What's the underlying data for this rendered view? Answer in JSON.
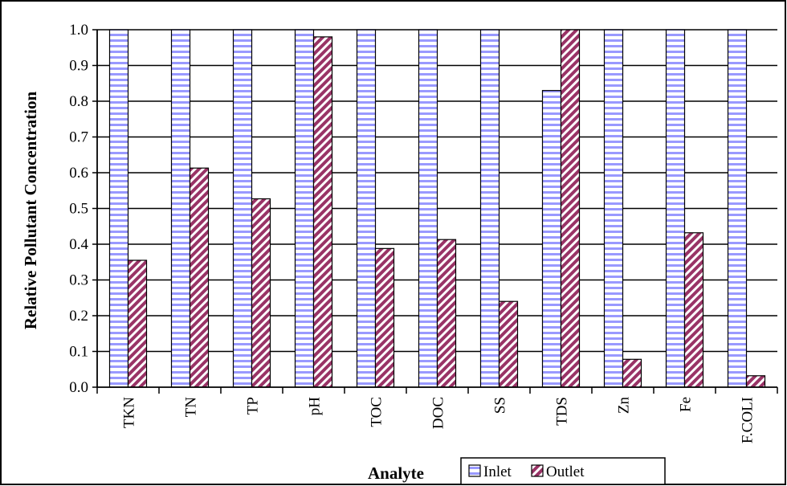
{
  "chart_data": {
    "type": "bar",
    "title": "",
    "xlabel": "Analyte",
    "ylabel": "Relative Pollutant Concentration",
    "ylim": [
      0,
      1.0
    ],
    "ytick_step": 0.1,
    "categories": [
      "TKN",
      "TN",
      "TP",
      "pH",
      "TOC",
      "DOC",
      "SS",
      "TDS",
      "Zn",
      "Fe",
      "F.COLI"
    ],
    "series": [
      {
        "name": "Inlet",
        "values": [
          1.0,
          1.0,
          1.0,
          1.0,
          1.0,
          1.0,
          1.0,
          0.83,
          1.0,
          1.0,
          1.0
        ],
        "color": "#9999ff",
        "pattern": "horizontal-stripes"
      },
      {
        "name": "Outlet",
        "values": [
          0.355,
          0.613,
          0.527,
          0.98,
          0.388,
          0.413,
          0.24,
          1.0,
          0.078,
          0.432,
          0.032
        ],
        "color": "#993366",
        "pattern": "diagonal-stripes"
      }
    ],
    "grid": "horizontal",
    "legend_position": "bottom-right"
  }
}
